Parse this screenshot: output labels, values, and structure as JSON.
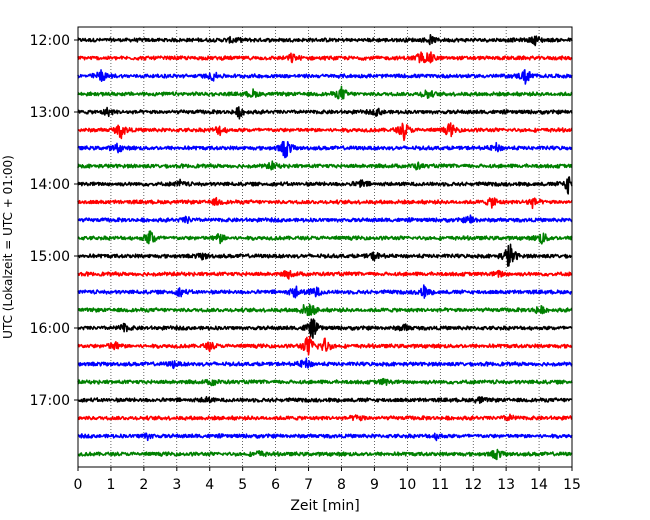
{
  "chart_data": {
    "type": "line",
    "title": "",
    "xlabel": "Zeit  [min]",
    "ylabel": "UTC (Lokalzeit = UTC + 01:00)",
    "xlim": [
      0,
      15
    ],
    "x_ticks": [
      "0",
      "1",
      "2",
      "3",
      "4",
      "5",
      "6",
      "7",
      "8",
      "9",
      "10",
      "11",
      "12",
      "13",
      "14",
      "15"
    ],
    "y_ticks": [
      "12:00",
      "13:00",
      "14:00",
      "15:00",
      "16:00",
      "17:00"
    ],
    "grid_x": true,
    "grid_style": "dotted",
    "trace_colors": [
      "#000000",
      "#ff0000",
      "#0000ff",
      "#008000"
    ],
    "traces": [
      {
        "start": "12:00",
        "events": [
          [
            13.9,
            0.45
          ],
          [
            10.7,
            0.35
          ],
          [
            4.7,
            0.3
          ]
        ]
      },
      {
        "start": "12:15",
        "events": [
          [
            10.4,
            0.6
          ],
          [
            10.7,
            0.5
          ],
          [
            6.5,
            0.4
          ]
        ]
      },
      {
        "start": "12:30",
        "events": [
          [
            0.7,
            0.6
          ],
          [
            13.6,
            0.8
          ],
          [
            4.1,
            0.4
          ]
        ]
      },
      {
        "start": "12:45",
        "events": [
          [
            8.0,
            0.7
          ],
          [
            10.6,
            0.5
          ],
          [
            5.3,
            0.4
          ]
        ]
      },
      {
        "start": "13:00",
        "events": [
          [
            4.9,
            0.5
          ],
          [
            0.9,
            0.4
          ],
          [
            9.1,
            0.35
          ]
        ]
      },
      {
        "start": "13:15",
        "events": [
          [
            1.3,
            0.8
          ],
          [
            9.9,
            0.9
          ],
          [
            11.3,
            0.7
          ],
          [
            4.3,
            0.5
          ]
        ]
      },
      {
        "start": "13:30",
        "events": [
          [
            6.3,
            1.1
          ],
          [
            1.2,
            0.4
          ],
          [
            12.7,
            0.4
          ]
        ]
      },
      {
        "start": "13:45",
        "events": [
          [
            5.9,
            0.35
          ],
          [
            10.3,
            0.3
          ]
        ]
      },
      {
        "start": "14:00",
        "events": [
          [
            14.9,
            1.0
          ],
          [
            8.6,
            0.4
          ],
          [
            3.1,
            0.3
          ]
        ]
      },
      {
        "start": "14:15",
        "events": [
          [
            12.6,
            0.6
          ],
          [
            13.8,
            0.5
          ],
          [
            4.2,
            0.3
          ]
        ]
      },
      {
        "start": "14:30",
        "events": [
          [
            11.9,
            0.45
          ],
          [
            3.3,
            0.3
          ]
        ]
      },
      {
        "start": "14:45",
        "events": [
          [
            2.2,
            0.9
          ],
          [
            4.3,
            0.5
          ],
          [
            14.1,
            0.6
          ]
        ]
      },
      {
        "start": "15:00",
        "events": [
          [
            13.1,
            1.5
          ],
          [
            9.0,
            0.4
          ],
          [
            3.8,
            0.3
          ]
        ]
      },
      {
        "start": "15:15",
        "events": [
          [
            6.4,
            0.35
          ],
          [
            12.8,
            0.3
          ]
        ]
      },
      {
        "start": "15:30",
        "events": [
          [
            6.6,
            0.6
          ],
          [
            7.2,
            0.6
          ],
          [
            10.5,
            0.6
          ],
          [
            3.1,
            0.4
          ]
        ]
      },
      {
        "start": "15:45",
        "events": [
          [
            6.9,
            0.5
          ],
          [
            7.1,
            0.5
          ],
          [
            14.0,
            0.5
          ]
        ]
      },
      {
        "start": "16:00",
        "events": [
          [
            7.1,
            1.2
          ],
          [
            1.4,
            0.4
          ],
          [
            9.9,
            0.35
          ]
        ]
      },
      {
        "start": "16:15",
        "events": [
          [
            7.0,
            1.2
          ],
          [
            7.5,
            0.8
          ],
          [
            1.1,
            0.5
          ],
          [
            4.0,
            0.4
          ]
        ]
      },
      {
        "start": "16:30",
        "events": [
          [
            6.9,
            0.6
          ],
          [
            2.9,
            0.3
          ]
        ]
      },
      {
        "start": "16:45",
        "events": [
          [
            9.3,
            0.3
          ],
          [
            4.1,
            0.3
          ]
        ]
      },
      {
        "start": "17:00",
        "events": [
          [
            12.2,
            0.3
          ],
          [
            3.9,
            0.3
          ]
        ]
      },
      {
        "start": "17:15",
        "events": [
          [
            8.5,
            0.35
          ],
          [
            13.1,
            0.3
          ]
        ]
      },
      {
        "start": "17:30",
        "events": [
          [
            10.9,
            0.3
          ],
          [
            2.1,
            0.3
          ]
        ]
      },
      {
        "start": "17:45",
        "events": [
          [
            12.7,
            0.5
          ],
          [
            5.5,
            0.3
          ]
        ]
      }
    ]
  }
}
